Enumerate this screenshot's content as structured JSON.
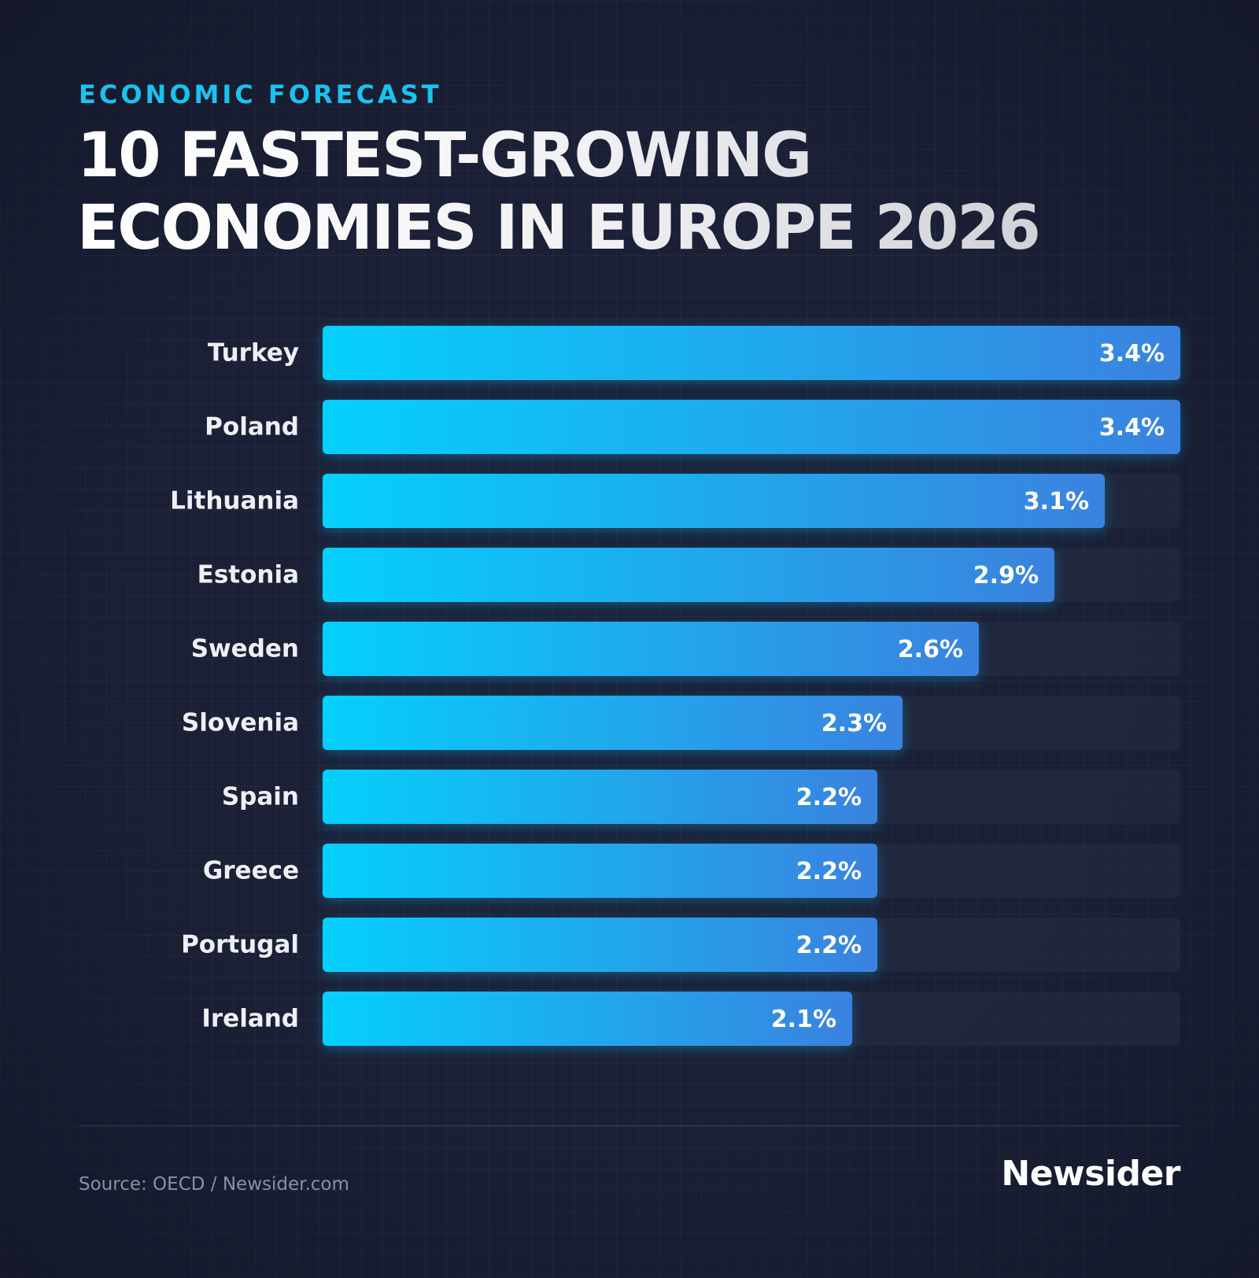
{
  "header": {
    "kicker": "ECONOMIC FORECAST",
    "title_line1": "10 FASTEST-GROWING",
    "title_line2": "ECONOMIES IN EUROPE 2026"
  },
  "footer": {
    "source": "Source: OECD / Newsider.com",
    "brand": "Newsider"
  },
  "colors": {
    "background": "#1b2036",
    "accent": "#19c3f0",
    "bar_start": "#05d0fb",
    "bar_end": "#3a82df",
    "track": "#242a42"
  },
  "chart_data": {
    "type": "bar",
    "orientation": "horizontal",
    "title": "10 FASTEST-GROWING ECONOMIES IN EUROPE 2026",
    "categories": [
      "Turkey",
      "Poland",
      "Lithuania",
      "Estonia",
      "Sweden",
      "Slovenia",
      "Spain",
      "Greece",
      "Portugal",
      "Ireland"
    ],
    "values": [
      3.4,
      3.4,
      3.1,
      2.9,
      2.6,
      2.3,
      2.2,
      2.2,
      2.2,
      2.1
    ],
    "value_labels": [
      "3.4%",
      "3.4%",
      "3.1%",
      "2.9%",
      "2.6%",
      "2.3%",
      "2.2%",
      "2.2%",
      "2.2%",
      "2.1%"
    ],
    "unit": "%",
    "xlim": [
      0,
      3.4
    ],
    "grid": false,
    "legend": "none"
  }
}
